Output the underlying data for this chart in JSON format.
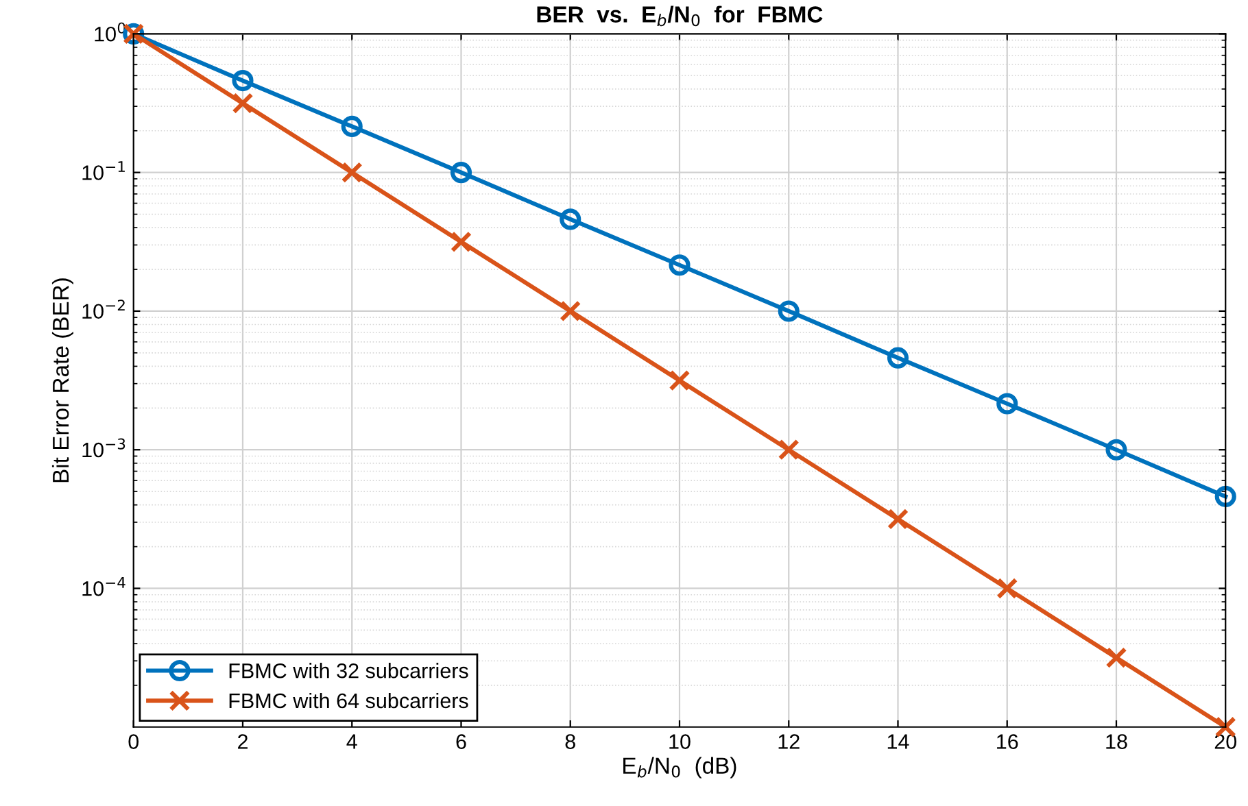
{
  "chart_data": {
    "type": "line",
    "title": "BER  vs.  E$_{b}$/N$_{0}$  for  FBMC",
    "xlabel": "E$_{b}$/N$_{0}$  (dB)",
    "ylabel": "Bit Error Rate (BER)",
    "x": [
      0,
      2,
      4,
      6,
      8,
      10,
      12,
      14,
      16,
      18,
      20
    ],
    "series": [
      {
        "name": "FBMC with 32 subcarriers",
        "color": "#0072bd",
        "marker": "circle",
        "values": [
          1,
          0.46,
          0.215,
          0.1,
          0.046,
          0.0215,
          0.01,
          0.0046,
          0.00215,
          0.001,
          0.00046
        ]
      },
      {
        "name": "FBMC with 64 subcarriers",
        "color": "#d95319",
        "marker": "cross",
        "values": [
          1,
          0.316,
          0.1,
          0.0316,
          0.01,
          0.00316,
          0.001,
          0.000316,
          0.0001,
          3.16e-05,
          1e-05
        ]
      }
    ],
    "log": "y",
    "xlim": [
      0,
      20
    ],
    "xticks": [
      0,
      2,
      4,
      6,
      8,
      10,
      12,
      14,
      16,
      18,
      20
    ],
    "ylim": [
      1e-05,
      1
    ],
    "yticks": [
      {
        "value": 0.0001,
        "label": "10$^{−4}$"
      },
      {
        "value": 0.001,
        "label": "10$^{−3}$"
      },
      {
        "value": 0.01,
        "label": "10$^{−2}$"
      },
      {
        "value": 0.1,
        "label": "10$^{−1}$"
      },
      {
        "value": 1,
        "label": "10$^{0}$"
      }
    ],
    "grid": true,
    "legend": "bottom left",
    "line_style": "solid"
  }
}
